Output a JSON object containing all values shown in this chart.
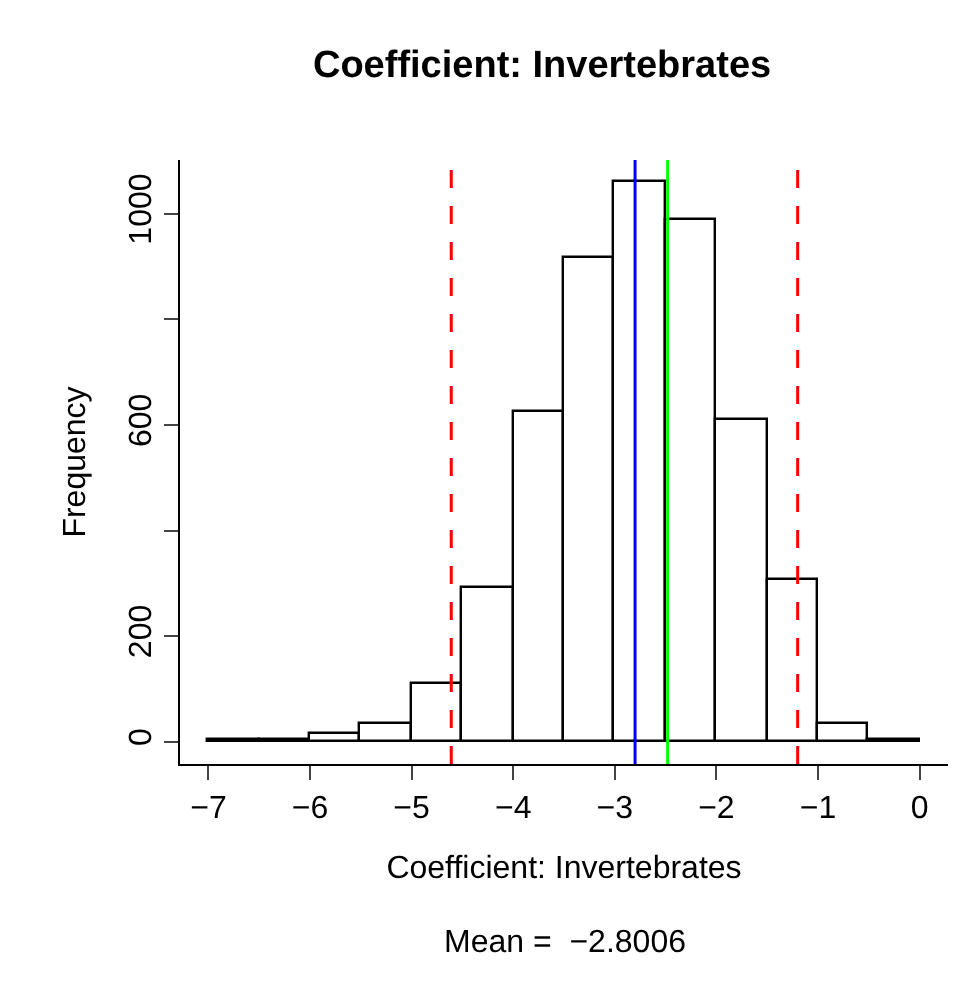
{
  "chart_data": {
    "type": "histogram",
    "title": "Coefficient: Invertebrates",
    "xlabel": "Coefficient: Invertebrates",
    "ylabel": "Frequency",
    "annotations": [
      "Mean =  −2.8006"
    ],
    "bins": [
      -7,
      -6.5,
      -6,
      -5.5,
      -5,
      -4.5,
      -4,
      -3.5,
      -3,
      -2.5,
      -2,
      -1.5,
      -1,
      -0.5,
      0
    ],
    "values": [
      3,
      5,
      16,
      32,
      108,
      292,
      624,
      917,
      1059,
      989,
      609,
      308,
      32,
      3
    ],
    "color": "#ffffff",
    "xlim": [
      -7.28,
      0.28
    ],
    "xticks": [
      -7,
      -6,
      -5,
      -4,
      -3,
      -2,
      -1,
      0
    ],
    "ylim": [
      -42,
      1102
    ],
    "yticks": [
      0,
      200,
      {
        "value": 400,
        "label": null
      },
      600,
      {
        "value": 800,
        "label": null
      },
      1000
    ],
    "ref_lines": [
      {
        "axis": "x",
        "value": -4.61,
        "color": "#ff0000",
        "line_style": "dashed"
      },
      {
        "axis": "x",
        "value": -1.2,
        "color": "#ff0000",
        "line_style": "dashed"
      },
      {
        "axis": "x",
        "value": -2.8006,
        "color": "#0000ff",
        "line_style": "solid"
      },
      {
        "axis": "x",
        "value": -2.48,
        "color": "#00ff00",
        "line_style": "solid"
      }
    ],
    "legend": false
  }
}
